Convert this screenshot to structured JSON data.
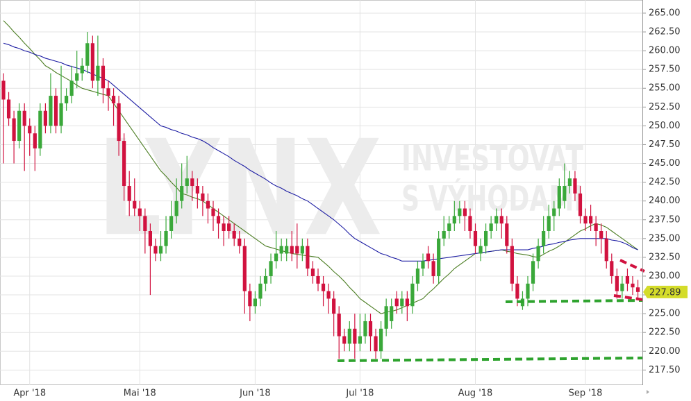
{
  "chart_data": {
    "type": "candlestick",
    "watermark": [
      "LYNX",
      "INVESTOVAT",
      "S VÝHODAMI"
    ],
    "last_label": "227.89",
    "up_color": "#3aa83a",
    "down_color": "#d1123f",
    "grid": true,
    "ylim": [
      215.5,
      266.75
    ],
    "yticks": [
      {
        "value": 217.5,
        "label": "217.50"
      },
      {
        "value": 220,
        "label": "220.00"
      },
      {
        "value": 222.5,
        "label": "222.50"
      },
      {
        "value": 225,
        "label": "225.00"
      },
      {
        "value": 227.5,
        "label": "227.50"
      },
      {
        "value": 230,
        "label": "230.00"
      },
      {
        "value": 232.5,
        "label": "232.50"
      },
      {
        "value": 235,
        "label": "235.00"
      },
      {
        "value": 237.5,
        "label": "237.50"
      },
      {
        "value": 240,
        "label": "240.00"
      },
      {
        "value": 242.5,
        "label": "242.50"
      },
      {
        "value": 245,
        "label": "245.00"
      },
      {
        "value": 247.5,
        "label": "247.50"
      },
      {
        "value": 250,
        "label": "250.00"
      },
      {
        "value": 252.5,
        "label": "252.50"
      },
      {
        "value": 255,
        "label": "255.00"
      },
      {
        "value": 257.5,
        "label": "257.50"
      },
      {
        "value": 260,
        "label": "260.00"
      },
      {
        "value": 262.5,
        "label": "262.50"
      },
      {
        "value": 265,
        "label": "265.00"
      }
    ],
    "categories": [
      null,
      null,
      null,
      null,
      null,
      "Apr '18",
      null,
      null,
      null,
      null,
      null,
      null,
      null,
      null,
      null,
      null,
      null,
      null,
      null,
      null,
      null,
      null,
      null,
      null,
      null,
      null,
      "Mai '18",
      null,
      null,
      null,
      null,
      null,
      null,
      null,
      null,
      null,
      null,
      null,
      null,
      null,
      null,
      null,
      null,
      null,
      null,
      null,
      null,
      null,
      "Jun '18",
      null,
      null,
      null,
      null,
      null,
      null,
      null,
      null,
      null,
      null,
      null,
      null,
      null,
      null,
      null,
      null,
      null,
      null,
      null,
      "Jul '18",
      null,
      null,
      null,
      null,
      null,
      null,
      null,
      null,
      null,
      null,
      null,
      null,
      null,
      null,
      null,
      null,
      null,
      null,
      null,
      null,
      null,
      "Aug '18",
      null,
      null,
      null,
      null,
      null,
      null,
      null,
      null,
      null,
      null,
      null,
      null,
      null,
      null,
      null,
      null,
      null,
      null,
      null,
      null,
      "Sep '18",
      null,
      null,
      null,
      null,
      null,
      null,
      null,
      null,
      null,
      null
    ],
    "open": [
      256,
      253.5,
      251,
      248,
      252,
      250,
      249,
      247,
      252,
      250,
      254,
      250,
      253,
      254,
      256,
      257,
      258,
      261,
      256,
      258,
      255,
      254,
      253,
      248,
      242,
      240,
      239,
      238,
      236,
      234,
      233,
      234,
      236,
      238,
      240,
      242,
      243,
      242,
      241,
      240,
      239,
      238,
      237,
      237,
      236,
      235,
      234,
      228,
      226,
      227,
      229,
      230,
      232,
      233,
      233,
      234,
      234,
      233,
      234,
      231,
      230,
      229,
      228,
      227,
      225,
      222,
      221,
      223,
      221,
      222,
      224,
      222,
      220,
      223,
      224,
      227,
      226,
      227,
      226,
      229,
      231,
      233,
      232,
      230,
      235,
      236,
      237,
      238,
      239,
      238,
      236,
      233,
      234,
      236,
      237,
      238,
      237,
      234,
      229,
      226,
      227,
      229,
      232,
      234,
      236,
      238,
      239,
      240,
      242,
      243,
      241,
      238,
      238,
      237,
      236,
      235,
      232,
      230,
      228,
      230,
      229,
      228.5
    ],
    "high": [
      257,
      254.5,
      252,
      253,
      253,
      251,
      250,
      253,
      253,
      257,
      255,
      258,
      255,
      258,
      260,
      259,
      262.5,
      262,
      262,
      259,
      256,
      255,
      254,
      249,
      244,
      243,
      240,
      239,
      237,
      235,
      236,
      238,
      240,
      243,
      245,
      246,
      244,
      243,
      242,
      241,
      240,
      239,
      238,
      238,
      237,
      236,
      235,
      229,
      228,
      230,
      231,
      233,
      236,
      235,
      235,
      236,
      237,
      235,
      235,
      232,
      231,
      230,
      229,
      228,
      226,
      223,
      224,
      225,
      225,
      225,
      225,
      223,
      224,
      227,
      227,
      228,
      228,
      228,
      230,
      232,
      233,
      234,
      233,
      236,
      238,
      238,
      240,
      240,
      240,
      239,
      237,
      235,
      237,
      238,
      239,
      239,
      238,
      235,
      230,
      228,
      230,
      233,
      235,
      238,
      239.5,
      240,
      243,
      245,
      244,
      244,
      242,
      239,
      239.5,
      238,
      237,
      236,
      233,
      231,
      230,
      231,
      230,
      229.5
    ],
    "low": [
      245,
      250,
      245,
      247,
      244,
      246,
      244,
      246,
      249,
      249,
      249,
      249,
      252,
      253,
      255,
      256,
      257,
      255,
      254,
      253,
      252,
      250,
      246,
      240,
      238,
      238,
      236,
      233,
      227.5,
      232,
      232,
      233,
      235,
      237,
      239,
      241,
      240,
      239,
      238,
      237,
      236,
      235,
      234,
      235,
      234,
      233,
      225,
      224,
      225,
      226,
      228,
      229,
      231,
      232,
      232,
      232,
      231,
      232,
      230,
      229,
      228,
      226,
      225,
      222,
      219,
      220,
      220,
      219,
      220,
      221,
      220,
      219,
      219,
      222,
      223,
      225,
      225,
      224,
      225,
      228,
      230,
      231,
      229,
      229,
      234,
      235,
      236,
      237,
      236,
      235,
      233,
      232,
      233,
      235,
      236,
      235,
      233,
      228,
      226,
      225.5,
      226,
      228,
      231,
      233,
      235,
      236,
      238,
      239,
      241,
      240,
      237,
      236,
      236,
      234,
      233,
      231,
      229,
      227,
      227,
      228,
      227.5,
      227
    ],
    "close": [
      253.5,
      251,
      248,
      252,
      250,
      249,
      247,
      252,
      250,
      254,
      250,
      253,
      254,
      256,
      257,
      258,
      261,
      256,
      258,
      255,
      254,
      253,
      248,
      242,
      240,
      239,
      238,
      236,
      234,
      233,
      234,
      236,
      238,
      240,
      242,
      243,
      242,
      241,
      240,
      239,
      238,
      237,
      236,
      236,
      235,
      234,
      228,
      226,
      227,
      229,
      230,
      232,
      233,
      234,
      234,
      233,
      233,
      234,
      231,
      230,
      229,
      228,
      227,
      225,
      222,
      221,
      223,
      221,
      222,
      224,
      222,
      220,
      223,
      226,
      226,
      226,
      227,
      226,
      229,
      231,
      232,
      232,
      230,
      235,
      236,
      237,
      238,
      239,
      238,
      236,
      234,
      234,
      236,
      237,
      238,
      237,
      234,
      229,
      227,
      227,
      229,
      232,
      234,
      236,
      238,
      239,
      242,
      242,
      243,
      241,
      238,
      237,
      237,
      236,
      235,
      232,
      230,
      228,
      229,
      229,
      228.5,
      227.89
    ],
    "lines": [
      {
        "color": "#4b7d22",
        "values": [
          264,
          263.3,
          262.5,
          261.8,
          261,
          260.3,
          259.5,
          258.8,
          258,
          257.6,
          257.1,
          256.7,
          256.3,
          255.9,
          255.4,
          255,
          254.8,
          254.6,
          254.4,
          254.2,
          254,
          253,
          252,
          251,
          250,
          249,
          248,
          247,
          246,
          245,
          244,
          243.3,
          242.5,
          241.8,
          241,
          240.8,
          240.5,
          240.3,
          240,
          239.5,
          239,
          238.5,
          238,
          237.5,
          237,
          236.5,
          236,
          235.5,
          235,
          234.5,
          234,
          233.8,
          233.6,
          233.4,
          233.2,
          233,
          232.9,
          232.8,
          232.7,
          232.6,
          232.5,
          231.9,
          231.3,
          230.6,
          230,
          229.3,
          228.5,
          227.8,
          227,
          226.5,
          226,
          225.5,
          225,
          225.2,
          225.3,
          225.5,
          225.8,
          226.1,
          226.4,
          226.7,
          227,
          227.7,
          228.3,
          229,
          229.7,
          230.3,
          231,
          231.5,
          232,
          232.5,
          233,
          233.1,
          233.2,
          233.3,
          233.4,
          233.5,
          233.3,
          233.2,
          233,
          232.9,
          232.8,
          232.6,
          232.5,
          232.9,
          233.3,
          233.6,
          234,
          234.5,
          235,
          235.5,
          236,
          236.3,
          236.7,
          237,
          236.8,
          236.5,
          236,
          235.5,
          235,
          234.5,
          234,
          233.5
        ]
      },
      {
        "color": "#1c1ca3",
        "values": [
          261,
          260.8,
          260.5,
          260.3,
          260,
          259.8,
          259.5,
          259.3,
          259,
          258.8,
          258.6,
          258.4,
          258.1,
          257.9,
          257.7,
          257.5,
          257.2,
          256.9,
          256.6,
          256.3,
          256,
          255.4,
          254.8,
          254.2,
          253.6,
          253,
          252.4,
          251.8,
          251.2,
          250.6,
          250,
          249.8,
          249.5,
          249.3,
          249,
          248.8,
          248.5,
          248.3,
          248,
          247.6,
          247.1,
          246.7,
          246.3,
          245.9,
          245.4,
          245,
          244.6,
          244.1,
          243.7,
          243.3,
          242.9,
          242.4,
          242,
          241.7,
          241.3,
          241,
          240.7,
          240.3,
          240,
          239.5,
          239,
          238.5,
          238,
          237.5,
          236.9,
          236.3,
          235.6,
          235,
          234.6,
          234.2,
          233.8,
          233.4,
          233,
          232.8,
          232.5,
          232.3,
          232,
          232,
          232,
          232,
          232,
          232.1,
          232.2,
          232.3,
          232.4,
          232.5,
          232.6,
          232.7,
          232.8,
          232.9,
          233,
          233.1,
          233.2,
          233.3,
          233.4,
          233.5,
          233.5,
          233.5,
          233.5,
          233.5,
          233.5,
          233.7,
          233.8,
          234,
          234.2,
          234.3,
          234.5,
          234.6,
          234.8,
          234.9,
          235,
          235,
          235,
          235,
          235,
          235,
          234.8,
          234.7,
          234.5,
          234.2,
          233.8,
          233.5
        ]
      }
    ]
  }
}
